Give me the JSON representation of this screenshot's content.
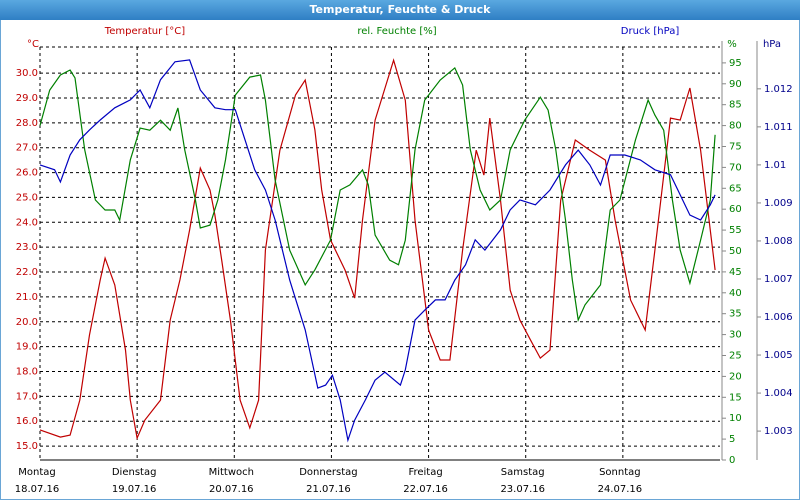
{
  "chart_data": {
    "type": "line",
    "title": "Temperatur, Feuchte & Druck",
    "xlim": [
      0,
      7.0
    ],
    "xticks": [
      {
        "value": 0,
        "label": "Montag",
        "date": "18.07.16"
      },
      {
        "value": 1,
        "label": "Dienstag",
        "date": "19.07.16"
      },
      {
        "value": 2,
        "label": "Mittwoch",
        "date": "20.07.16"
      },
      {
        "value": 3,
        "label": "Donnerstag",
        "date": "21.07.16"
      },
      {
        "value": 4,
        "label": "Freitag",
        "date": "22.07.16"
      },
      {
        "value": 5,
        "label": "Samstag",
        "date": "23.07.16"
      },
      {
        "value": 6,
        "label": "Sonntag",
        "date": "24.07.16"
      }
    ],
    "yunit": "°C",
    "ylim": [
      14.44,
      31.05
    ],
    "yticks": [
      {
        "value": 15,
        "label": "15.0"
      },
      {
        "value": 16,
        "label": "16.0"
      },
      {
        "value": 17,
        "label": "17.0"
      },
      {
        "value": 18,
        "label": "18.0"
      },
      {
        "value": 19,
        "label": "19.0"
      },
      {
        "value": 20,
        "label": "20.0"
      },
      {
        "value": 21,
        "label": "21.0"
      },
      {
        "value": 22,
        "label": "22.0"
      },
      {
        "value": 23,
        "label": "23.0"
      },
      {
        "value": 24,
        "label": "24.0"
      },
      {
        "value": 25,
        "label": "25.0"
      },
      {
        "value": 26,
        "label": "26.0"
      },
      {
        "value": 27,
        "label": "27.0"
      },
      {
        "value": 28,
        "label": "28.0"
      },
      {
        "value": 29,
        "label": "29.0"
      },
      {
        "value": 30,
        "label": "30.0"
      }
    ],
    "y2unit": "%",
    "y2lim": [
      0,
      98.8
    ],
    "y2ticks": [
      0,
      5,
      10,
      15,
      20,
      25,
      30,
      35,
      40,
      45,
      50,
      55,
      60,
      65,
      70,
      75,
      80,
      85,
      90,
      95
    ],
    "y3unit": "hPa",
    "y3lim": [
      1.00224,
      1.0131
    ],
    "y3ticks": [
      1.003,
      1.004,
      1.005,
      1.006,
      1.007,
      1.008,
      1.009,
      1.01,
      1.011,
      1.012
    ],
    "grid": true,
    "series": [
      {
        "name": "Temperatur [°C]",
        "color": "#c00000",
        "axis": "y",
        "x": [
          0,
          0.21,
          0.31,
          0.41,
          0.51,
          0.62,
          0.67,
          0.77,
          0.88,
          0.93,
          1.0,
          1.08,
          1.24,
          1.34,
          1.44,
          1.54,
          1.65,
          1.75,
          1.8,
          1.87,
          1.96,
          2.06,
          2.16,
          2.25,
          2.32,
          2.47,
          2.63,
          2.73,
          2.83,
          2.9,
          2.99,
          3.14,
          3.24,
          3.32,
          3.45,
          3.64,
          3.76,
          3.86,
          4.0,
          4.12,
          4.22,
          4.35,
          4.49,
          4.57,
          4.63,
          4.74,
          4.84,
          4.94,
          5.05,
          5.15,
          5.25,
          5.36,
          5.51,
          5.66,
          5.82,
          5.92,
          6.08,
          6.23,
          6.33,
          6.49,
          6.59,
          6.69,
          6.8,
          6.95
        ],
        "values": [
          15.65,
          15.36,
          15.44,
          16.85,
          19.47,
          21.68,
          22.56,
          21.48,
          18.86,
          16.85,
          15.32,
          16.05,
          16.85,
          20.07,
          21.68,
          23.69,
          26.18,
          25.3,
          24.29,
          22.48,
          20.07,
          16.85,
          15.73,
          16.85,
          22.88,
          26.9,
          29.12,
          29.72,
          27.71,
          25.3,
          23.29,
          22.08,
          20.95,
          24.09,
          28.11,
          30.52,
          28.91,
          24.09,
          19.67,
          18.46,
          18.46,
          22.88,
          26.9,
          25.9,
          28.19,
          24.89,
          21.27,
          20.07,
          19.26,
          18.54,
          18.86,
          24.89,
          27.31,
          26.9,
          26.5,
          24.09,
          20.87,
          19.67,
          22.88,
          28.19,
          28.11,
          29.4,
          26.9,
          22.08
        ]
      },
      {
        "name": "rel. Feuchte [%]",
        "color": "#008000",
        "axis": "y2",
        "x": [
          0,
          0.1,
          0.21,
          0.31,
          0.36,
          0.46,
          0.57,
          0.67,
          0.77,
          0.82,
          0.93,
          1.03,
          1.13,
          1.24,
          1.34,
          1.42,
          1.49,
          1.6,
          1.65,
          1.75,
          1.83,
          1.91,
          2.01,
          2.16,
          2.27,
          2.32,
          2.42,
          2.57,
          2.73,
          2.83,
          2.99,
          3.09,
          3.19,
          3.32,
          3.38,
          3.45,
          3.6,
          3.69,
          3.76,
          3.86,
          3.96,
          4.12,
          4.27,
          4.35,
          4.43,
          4.53,
          4.63,
          4.74,
          4.84,
          4.99,
          5.15,
          5.23,
          5.31,
          5.41,
          5.48,
          5.54,
          5.61,
          5.77,
          5.87,
          5.97,
          6.13,
          6.26,
          6.33,
          6.42,
          6.51,
          6.59,
          6.69,
          6.8,
          6.9,
          6.95
        ],
        "values": [
          80.0,
          88.5,
          92.1,
          93.3,
          91.4,
          74.2,
          62.2,
          59.8,
          59.8,
          57.4,
          71.8,
          79.4,
          78.9,
          81.3,
          78.9,
          84.2,
          74.2,
          62.2,
          55.5,
          56.2,
          62.2,
          71.8,
          87.3,
          91.6,
          92.1,
          86.1,
          67.0,
          50.2,
          41.9,
          45.5,
          52.6,
          64.6,
          65.8,
          69.4,
          65.8,
          53.8,
          47.8,
          46.7,
          52.6,
          74.2,
          86.1,
          90.9,
          93.8,
          89.7,
          74.2,
          64.6,
          59.8,
          62.2,
          74.2,
          81.3,
          86.8,
          83.7,
          74.2,
          57.4,
          43.1,
          33.5,
          37.1,
          41.9,
          59.8,
          62.2,
          76.6,
          86.1,
          82.5,
          78.9,
          62.2,
          50.2,
          42.3,
          52.6,
          62.2,
          77.8
        ]
      },
      {
        "name": "Druck [hPa]",
        "color": "#0000c0",
        "axis": "y3",
        "x": [
          0,
          0.15,
          0.21,
          0.31,
          0.41,
          0.51,
          0.62,
          0.77,
          0.93,
          1.03,
          1.13,
          1.24,
          1.39,
          1.54,
          1.65,
          1.8,
          1.91,
          2.01,
          2.11,
          2.21,
          2.32,
          2.42,
          2.57,
          2.73,
          2.86,
          2.94,
          3.01,
          3.09,
          3.17,
          3.24,
          3.35,
          3.45,
          3.55,
          3.71,
          3.76,
          3.86,
          3.96,
          4.07,
          4.17,
          4.27,
          4.38,
          4.48,
          4.58,
          4.74,
          4.84,
          4.94,
          5.1,
          5.25,
          5.41,
          5.54,
          5.66,
          5.77,
          5.87,
          6.02,
          6.18,
          6.33,
          6.49,
          6.59,
          6.69,
          6.8,
          6.9,
          6.95
        ],
        "values": [
          1.01,
          1.00987,
          1.00955,
          1.01026,
          1.01066,
          1.01092,
          1.01118,
          1.0115,
          1.01171,
          1.01197,
          1.0115,
          1.01224,
          1.01271,
          1.01276,
          1.01197,
          1.0115,
          1.01145,
          1.01145,
          1.01066,
          1.00987,
          1.00934,
          1.00855,
          1.00697,
          1.00566,
          1.00413,
          1.00421,
          1.00447,
          1.00382,
          1.00276,
          1.00329,
          1.00382,
          1.00434,
          1.00455,
          1.00421,
          1.00461,
          1.00592,
          1.00618,
          1.00645,
          1.00645,
          1.00697,
          1.00737,
          1.00803,
          1.00776,
          1.00829,
          1.00882,
          1.00908,
          1.00895,
          1.00934,
          1.01,
          1.01039,
          1.01,
          1.00947,
          1.01026,
          1.01026,
          1.01013,
          1.00987,
          1.00974,
          1.00921,
          1.00868,
          1.00855,
          1.00895,
          1.00921
        ]
      }
    ]
  }
}
